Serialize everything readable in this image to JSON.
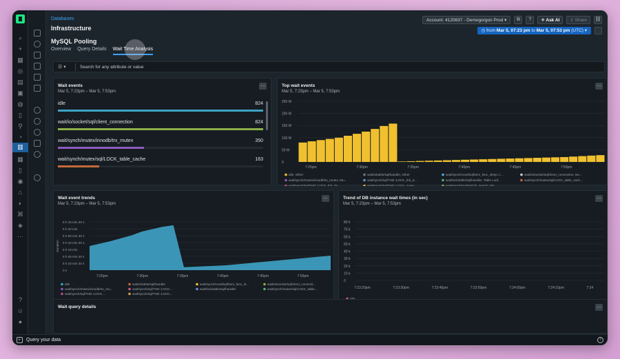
{
  "breadcrumb": "Databases",
  "app_title": "Infrastructure",
  "page_title": "MySQL Pooling",
  "tabs": [
    {
      "label": "Overview"
    },
    {
      "label": "Query Details"
    },
    {
      "label": "Wait Time Analysis",
      "active": true
    }
  ],
  "topbar": {
    "account": "Account: 4120837 - Demogorgon Prod",
    "ask_ai": "Ask AI",
    "share": "Share"
  },
  "time_picker": {
    "prefix": "from",
    "from": "Mar 5, 07:23 pm",
    "to_word": "to",
    "to": "Mar 5, 07:53 pm",
    "tz": "(UTC)"
  },
  "filter": {
    "placeholder": "Search for any attribute or value"
  },
  "colors": {
    "accent": "#3fa2f7",
    "time_picker": "#1565c0",
    "bar_yellow": "#f0c02f",
    "area_teal": "#3fa3c6"
  },
  "wait_events": {
    "title": "Wait events",
    "subtitle": "Mar 5, 7:23pm – Mar 5, 7:53pm",
    "items": [
      {
        "label": "idle",
        "value": "824",
        "fraction": 1.0,
        "color": "#3fa3c6"
      },
      {
        "label": "wait/io/socket/sql/client_connection",
        "value": "824",
        "fraction": 1.0,
        "color": "#8db04a"
      },
      {
        "label": "wait/synch/mutex/innodb/trx_mutex",
        "value": "350",
        "fraction": 0.42,
        "color": "#8e5bbf"
      },
      {
        "label": "wait/synch/mutex/sql/LOCK_table_cache",
        "value": "163",
        "fraction": 0.2,
        "color": "#c36a3a"
      }
    ]
  },
  "top_wait": {
    "title": "Top wait events",
    "subtitle": "Mar 5, 7:23pm – Mar 5, 7:53pm"
  },
  "trends": {
    "title": "Wait event trends",
    "subtitle": "Mar 5, 7:23pm – Mar 5, 7:53pm"
  },
  "db_trend": {
    "title": "Trend of DB instance wait times (in sec)",
    "subtitle": "Mar 5, 7:23pm – Mar 5, 7:53pm"
  },
  "query_details": {
    "title": "Wait query details"
  },
  "bottom_bar": {
    "query_label": "Query your data"
  },
  "chart_data": [
    {
      "type": "bar",
      "title": "Top wait events",
      "yticks": [
        "250 M",
        "200 M",
        "150 M",
        "100 M",
        "50 M",
        "0"
      ],
      "ylim": [
        0,
        250000000
      ],
      "xticks": [
        "7:25pm",
        "7:30pm",
        "7:35pm",
        "7:40pm",
        "7:45pm",
        "7:50pm"
      ],
      "series": [
        {
          "name": "idle, Other",
          "color": "#f0c02f",
          "values": [
            80,
            85,
            90,
            95,
            100,
            108,
            116,
            125,
            136,
            148,
            158,
            2,
            3,
            4,
            5,
            6,
            7,
            8,
            9,
            10,
            11,
            12,
            13,
            14,
            15,
            16,
            17,
            18,
            19,
            20,
            22,
            24,
            26,
            28
          ]
        }
      ],
      "units": "M",
      "legend": [
        {
          "label": "idle, Other",
          "color": "#f0c02f"
        },
        {
          "label": "wait/io/table/sql/handler, Other",
          "color": "#6c7a86"
        },
        {
          "label": "wait/synch/cond/sql/Item_func_sleep::c...",
          "color": "#5aa7d6"
        },
        {
          "label": "wait/io/socket/sql/client_connection, Ne...",
          "color": "#d0d0d0"
        },
        {
          "label": "wait/synch/mutex/innodb/trx_mutex, Mu...",
          "color": "#8e5bbf"
        },
        {
          "label": "wait/synch/sql/THD::LOCK_thd_d...",
          "color": "#6b8fd6"
        },
        {
          "label": "wait/lock/table/sql/handler, Table Lock",
          "color": "#55b07a"
        },
        {
          "label": "wait/synch/mutex/sql/LOCK_table_cach...",
          "color": "#c36a3a"
        },
        {
          "label": "wait/synch/sql/THD::LOCK_thd_da...",
          "color": "#b04d8e"
        },
        {
          "label": "wait/synch/sql/THD::LOCK_query...",
          "color": "#d6a14a"
        },
        {
          "label": "wait/synch/sock/sql/clt_search_lab...",
          "color": "#9a9a5a"
        }
      ]
    },
    {
      "type": "area",
      "title": "Wait event trends",
      "ylabel": "Duration",
      "yticks": [
        "5 h 43 min 20 s",
        "5 h 20 min",
        "5 h 56 min 40 s",
        "5 h 33 min 20 s",
        "5 h 10 min",
        "5 h 46 min 40 s",
        "5 h 23 min 20 s",
        "0 s"
      ],
      "xticks": [
        "7:25pm",
        "7:30pm",
        "7:35pm",
        "7:40pm",
        "7:45pm",
        "7:50pm"
      ],
      "series": [
        {
          "name": "idle",
          "color": "#3fa3c6",
          "values": [
            0.5,
            0.55,
            0.6,
            0.66,
            0.72,
            0.8,
            0.85,
            0.9,
            0.93,
            0.06,
            0.07,
            0.08,
            0.09,
            0.1,
            0.12,
            0.14,
            0.16,
            0.18,
            0.2,
            0.22,
            0.24,
            0.26,
            0.28,
            0.3
          ]
        }
      ],
      "legend": [
        {
          "label": "idle",
          "color": "#3fa3c6"
        },
        {
          "label": "wait/io/table/sql/handler",
          "color": "#c36a3a"
        },
        {
          "label": "wait/synch/cond/sql/Item_func_sl...",
          "color": "#f0c02f"
        },
        {
          "label": "wait/io/socket/sql/client_connecti...",
          "color": "#8db04a"
        },
        {
          "label": "wait/synch/mutex/innodb/trx_mu...",
          "color": "#8e5bbf"
        },
        {
          "label": "wait/synch/sql/THD::LOCK...",
          "color": "#d05a8a"
        },
        {
          "label": "wait/lock/table/sql/handler",
          "color": "#6b8fd6"
        },
        {
          "label": "wait/synch/mutex/sql/LOCK_table...",
          "color": "#55b07a"
        },
        {
          "label": "wait/synch/sql/THD::LOCK...",
          "color": "#b04d8e"
        },
        {
          "label": "wait/synch/sql/THD::LOCK...",
          "color": "#d6a14a"
        }
      ]
    },
    {
      "type": "line",
      "title": "Trend of DB instance wait times (in sec)",
      "yticks": [
        "80 k",
        "70 k",
        "60 k",
        "50 k",
        "40 k",
        "30 k",
        "20 k",
        "10 k",
        "0"
      ],
      "ylim": [
        0,
        80000
      ],
      "xticks": [
        "7:23:20pm",
        "7:23:30pm",
        "7:23:40pm",
        "7:23:50pm",
        "7:24:00pm",
        "7:24:10pm",
        "7:24"
      ],
      "series": [
        {
          "name": "idle",
          "color": "#d05a8a",
          "values": []
        }
      ],
      "legend": [
        {
          "label": "idle",
          "color": "#d05a8a"
        }
      ]
    }
  ]
}
